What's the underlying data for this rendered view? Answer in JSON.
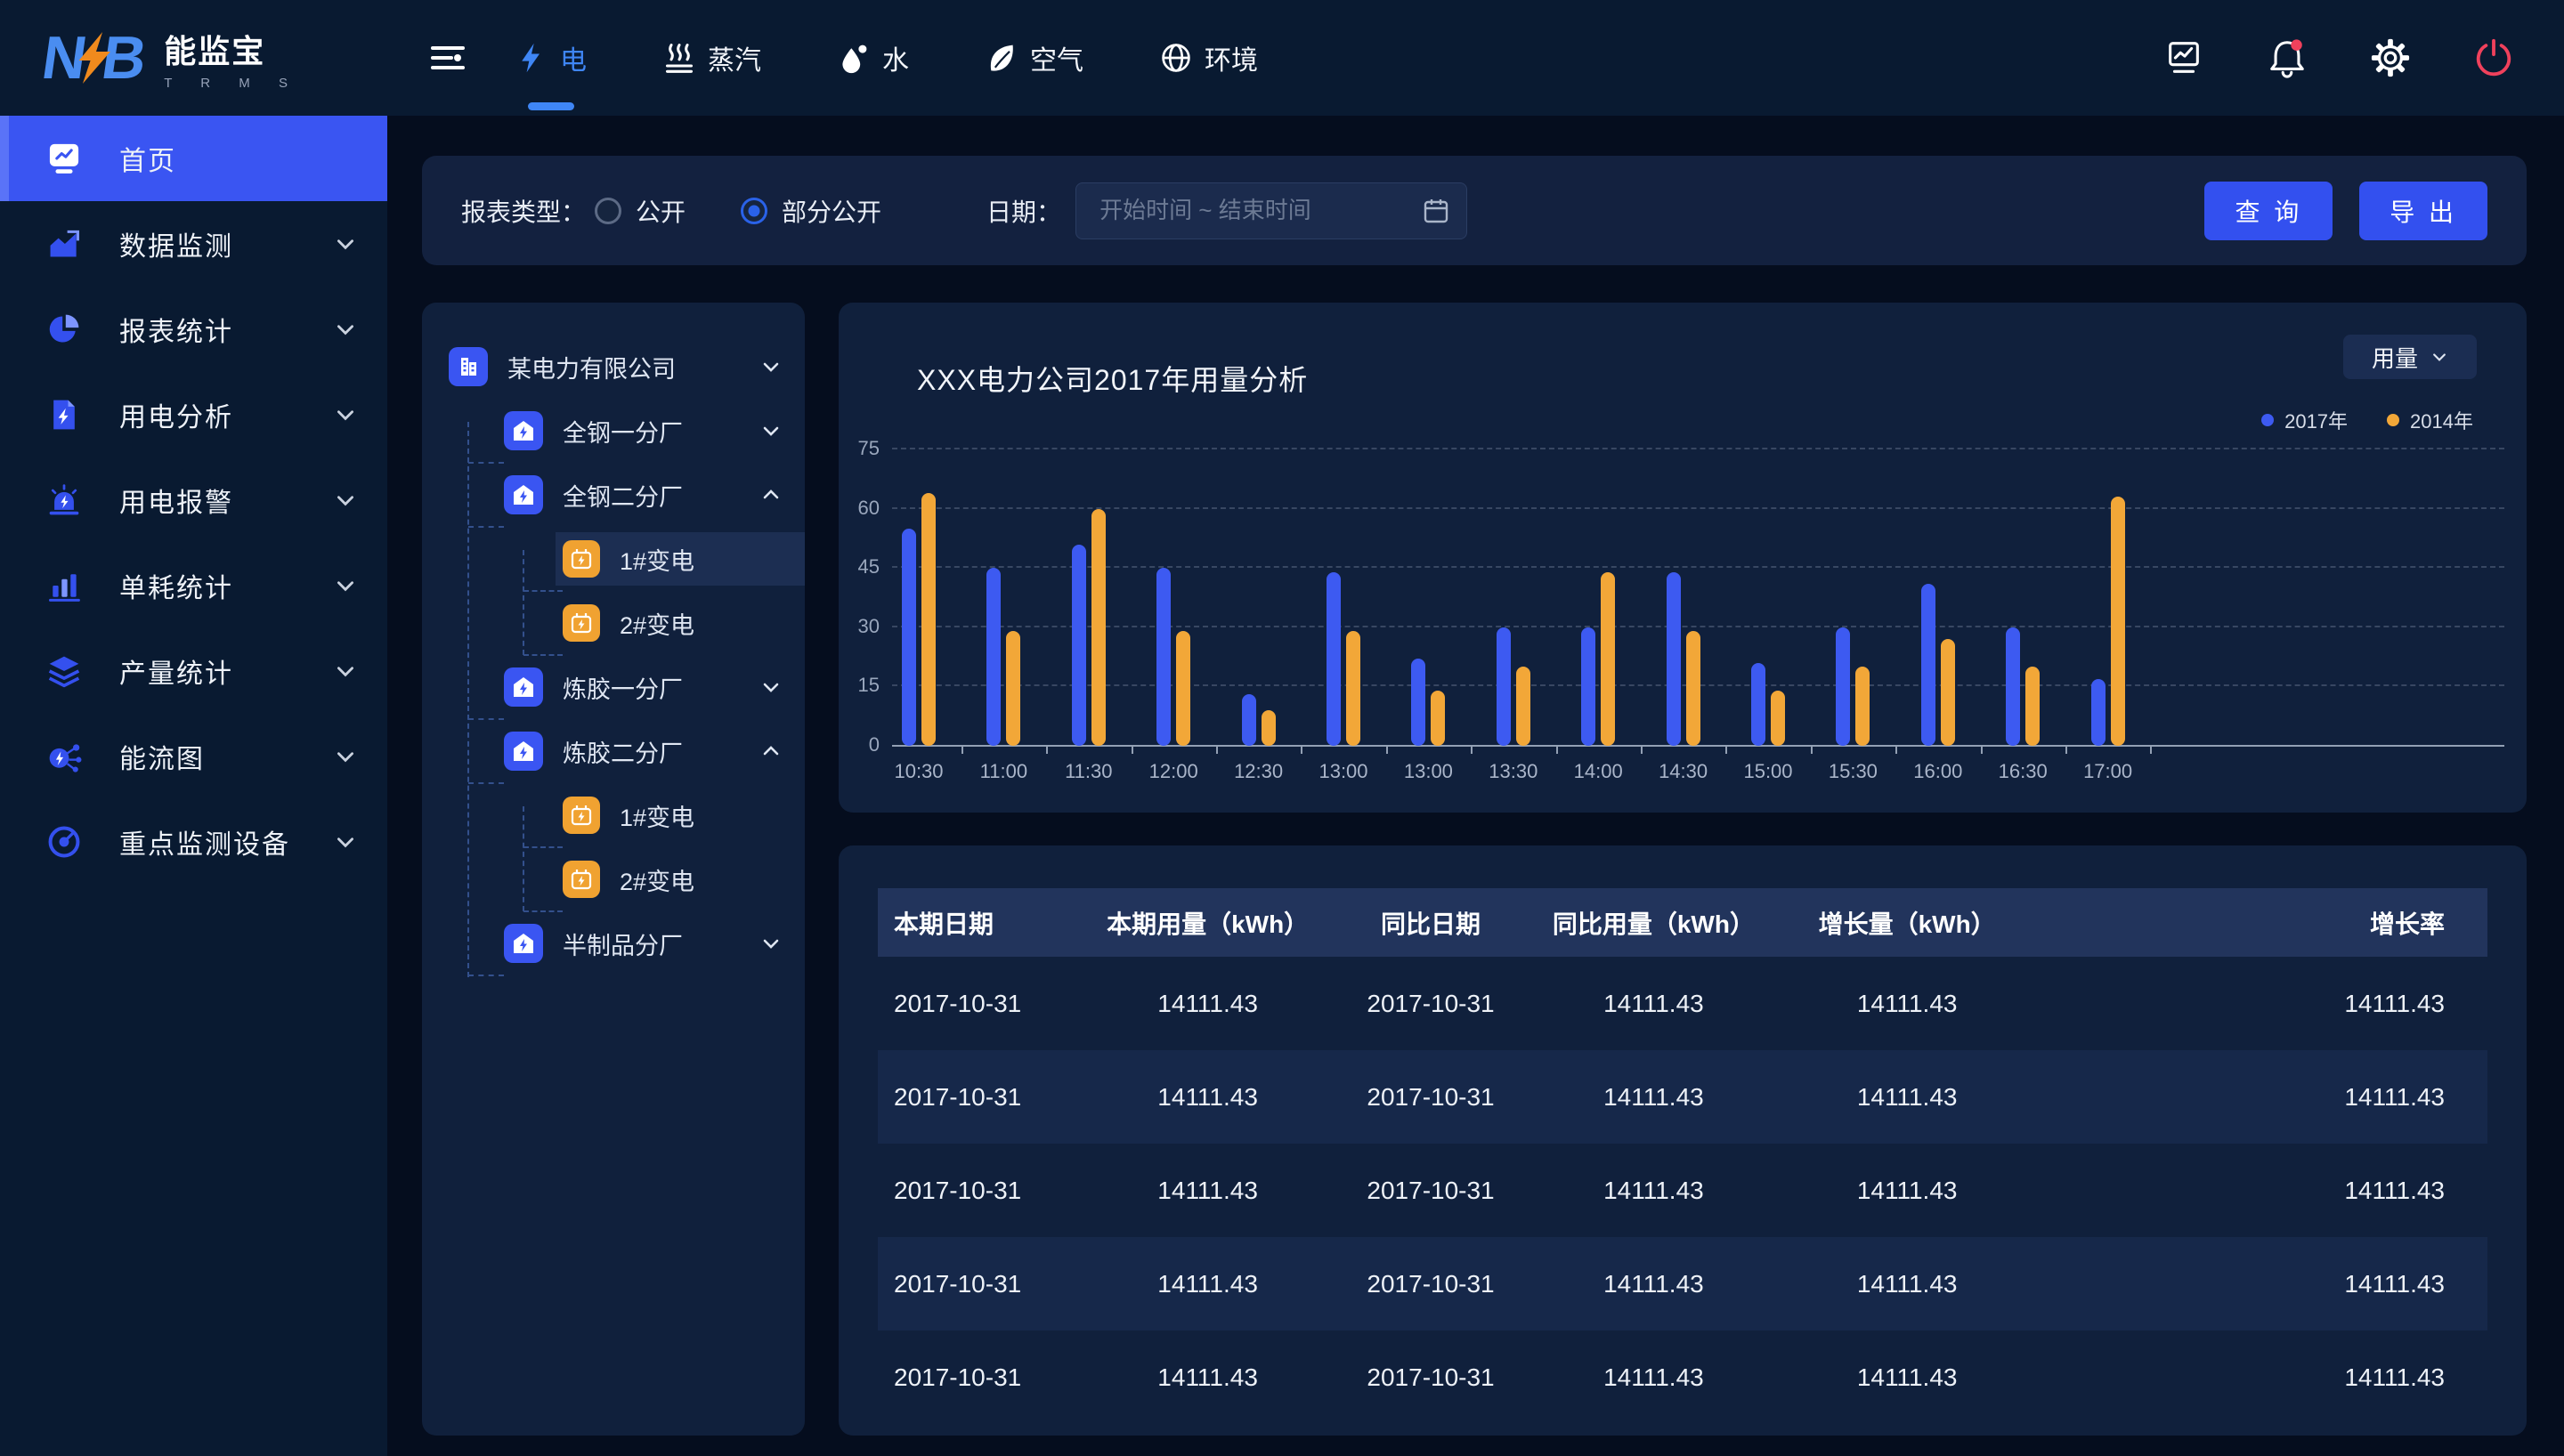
{
  "brand": {
    "logo_mark": "NB",
    "name": "能监宝",
    "subtitle": "T R M S"
  },
  "topbar": {
    "tabs": [
      {
        "label": "电",
        "active": true
      },
      {
        "label": "蒸汽",
        "active": false
      },
      {
        "label": "水",
        "active": false
      },
      {
        "label": "空气",
        "active": false
      },
      {
        "label": "环境",
        "active": false
      }
    ]
  },
  "sidebar": {
    "items": [
      {
        "label": "首页",
        "active": true,
        "has_children": false
      },
      {
        "label": "数据监测",
        "active": false,
        "has_children": true
      },
      {
        "label": "报表统计",
        "active": false,
        "has_children": true
      },
      {
        "label": "用电分析",
        "active": false,
        "has_children": true
      },
      {
        "label": "用电报警",
        "active": false,
        "has_children": true
      },
      {
        "label": "单耗统计",
        "active": false,
        "has_children": true
      },
      {
        "label": "产量统计",
        "active": false,
        "has_children": true
      },
      {
        "label": "能流图",
        "active": false,
        "has_children": true
      },
      {
        "label": "重点监测设备",
        "active": false,
        "has_children": true
      }
    ]
  },
  "filters": {
    "report_type_label": "报表类型：",
    "options": [
      {
        "label": "公开",
        "checked": false
      },
      {
        "label": "部分公开",
        "checked": true
      }
    ],
    "date_label": "日期：",
    "date_placeholder": "开始时间 ~ 结束时间",
    "query_button": "查 询",
    "export_button": "导 出"
  },
  "tree": {
    "nodes": [
      {
        "label": "某电力有限公司",
        "level": 0,
        "icon": "company",
        "chevron": "down",
        "selected": false
      },
      {
        "label": "全钢一分厂",
        "level": 1,
        "icon": "factory",
        "chevron": "down",
        "selected": false
      },
      {
        "label": "全钢二分厂",
        "level": 1,
        "icon": "factory",
        "chevron": "up",
        "selected": false
      },
      {
        "label": "1#变电",
        "level": 2,
        "icon": "transformer",
        "chevron": "none",
        "selected": true
      },
      {
        "label": "2#变电",
        "level": 2,
        "icon": "transformer",
        "chevron": "none",
        "selected": false
      },
      {
        "label": "炼胶一分厂",
        "level": 1,
        "icon": "factory",
        "chevron": "down",
        "selected": false
      },
      {
        "label": "炼胶二分厂",
        "level": 1,
        "icon": "factory",
        "chevron": "up",
        "selected": false
      },
      {
        "label": "1#变电",
        "level": 2,
        "icon": "transformer",
        "chevron": "none",
        "selected": false
      },
      {
        "label": "2#变电",
        "level": 2,
        "icon": "transformer",
        "chevron": "none",
        "selected": false
      },
      {
        "label": "半制品分厂",
        "level": 1,
        "icon": "factory",
        "chevron": "down",
        "selected": false
      }
    ]
  },
  "chart_data": {
    "type": "bar",
    "title": "XXX电力公司2017年用量分析",
    "unit_selector": "用量",
    "legend_position": "top-right",
    "grid": "horizontal-dashed",
    "ylim": [
      0,
      75
    ],
    "yticks": [
      0,
      15,
      30,
      45,
      60,
      75
    ],
    "categories": [
      "10:30",
      "11:00",
      "11:30",
      "12:00",
      "12:30",
      "13:00",
      "13:00",
      "13:30",
      "14:00",
      "14:30",
      "15:00",
      "15:30",
      "16:00",
      "16:30",
      "17:00"
    ],
    "series": [
      {
        "name": "2017年",
        "color": "#3d5af1",
        "values": [
          55,
          45,
          51,
          45,
          13,
          44,
          22,
          30,
          30,
          44,
          21,
          30,
          41,
          30,
          17
        ]
      },
      {
        "name": "2014年",
        "color": "#f2a738",
        "values": [
          64,
          29,
          60,
          29,
          9,
          29,
          14,
          20,
          44,
          29,
          14,
          20,
          27,
          20,
          63
        ]
      }
    ]
  },
  "table": {
    "headers": [
      "本期日期",
      "本期用量（kWh）",
      "同比日期",
      "同比用量（kWh）",
      "增长量（kWh）",
      "增长率"
    ],
    "rows": [
      [
        "2017-10-31",
        "14111.43",
        "2017-10-31",
        "14111.43",
        "14111.43",
        "14111.43"
      ],
      [
        "2017-10-31",
        "14111.43",
        "2017-10-31",
        "14111.43",
        "14111.43",
        "14111.43"
      ],
      [
        "2017-10-31",
        "14111.43",
        "2017-10-31",
        "14111.43",
        "14111.43",
        "14111.43"
      ],
      [
        "2017-10-31",
        "14111.43",
        "2017-10-31",
        "14111.43",
        "14111.43",
        "14111.43"
      ],
      [
        "2017-10-31",
        "14111.43",
        "2017-10-31",
        "14111.43",
        "14111.43",
        "14111.43"
      ]
    ]
  },
  "colors": {
    "accent_blue": "#3a55f2",
    "tab_blue": "#3f86f5",
    "bar_blue": "#3d5af1",
    "bar_orange": "#f2a738",
    "danger": "#f0415c"
  }
}
